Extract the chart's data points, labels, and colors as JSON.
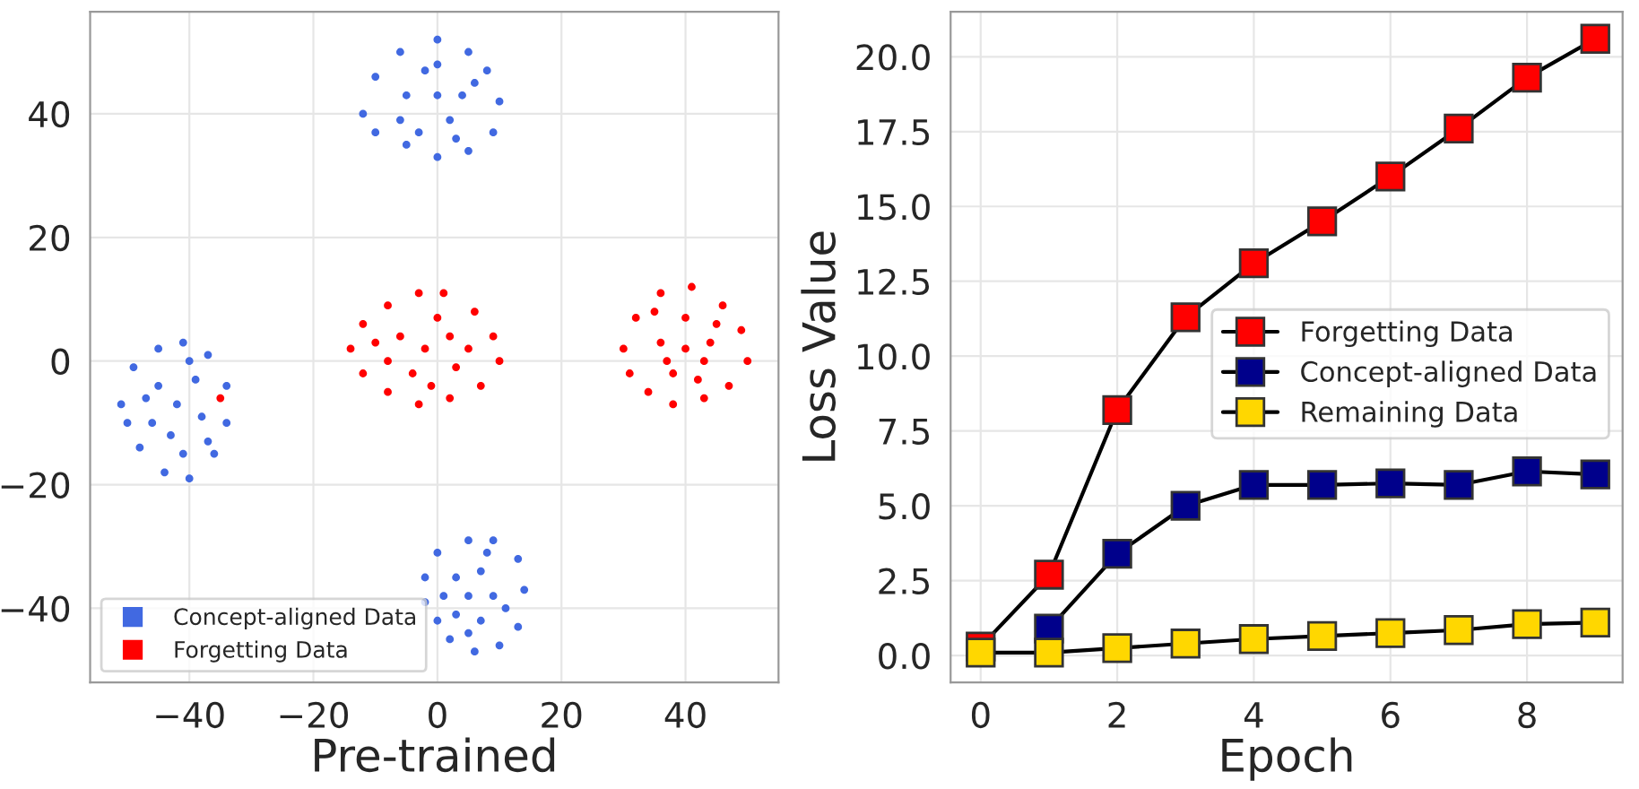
{
  "chart_data": [
    {
      "type": "scatter",
      "xlabel": "Pre-trained",
      "xlim": [
        -56,
        55
      ],
      "ylim": [
        -52,
        56.5
      ],
      "xticks": [
        {
          "value": -40,
          "label": "−40"
        },
        {
          "value": -20,
          "label": "−20"
        },
        0,
        20,
        40
      ],
      "yticks": [
        {
          "value": -40,
          "label": "−40"
        },
        {
          "value": -20,
          "label": "−20"
        },
        0,
        20,
        40
      ],
      "grid": true,
      "legend": "bottom left",
      "marker": "circle",
      "series": [
        {
          "name": "Concept-aligned Data",
          "color": "#4169e1",
          "x": [
            -12,
            -10,
            -6,
            0,
            5,
            8,
            10,
            9,
            5,
            0,
            -5,
            -10,
            -5,
            0,
            4,
            -2,
            2,
            -6,
            6,
            0,
            -3,
            3,
            -51,
            -49,
            -45,
            -41,
            -37,
            -34,
            -34,
            -36,
            -40,
            -44,
            -48,
            -50,
            -42,
            -45,
            -39,
            -43,
            -38,
            -46,
            -41,
            -40,
            -47,
            -37,
            -2,
            0,
            5,
            9,
            13,
            14,
            13,
            10,
            6,
            2,
            0,
            -2,
            3,
            7,
            5,
            9,
            3,
            7,
            11,
            1,
            8,
            5
          ],
          "values": [
            40,
            46,
            50,
            52,
            50,
            47,
            42,
            37,
            34,
            33,
            35,
            37,
            43,
            43,
            43,
            47,
            39,
            39,
            45,
            48,
            37,
            36,
            -7,
            -1,
            2,
            3,
            1,
            -4,
            -10,
            -15,
            -19,
            -18,
            -14,
            -10,
            -7,
            -4,
            -3,
            -12,
            -9,
            -10,
            -15,
            0,
            -6,
            -13,
            -35,
            -31,
            -29,
            -29,
            -32,
            -37,
            -43,
            -46,
            -47,
            -45,
            -42,
            -39,
            -35,
            -34,
            -38,
            -38,
            -41,
            -42,
            -40,
            -38,
            -31,
            -44
          ]
        },
        {
          "name": "Forgetting Data",
          "color": "#ff0000",
          "x": [
            -14,
            -12,
            -8,
            -3,
            1,
            6,
            9,
            10,
            7,
            2,
            -3,
            -8,
            -12,
            -2,
            -6,
            2,
            -4,
            3,
            -8,
            0,
            5,
            -1,
            -10,
            30,
            32,
            36,
            41,
            46,
            49,
            50,
            47,
            43,
            38,
            34,
            31,
            40,
            36,
            44,
            38,
            42,
            40,
            35,
            45,
            37,
            43,
            -35
          ],
          "values": [
            2,
            6,
            9,
            11,
            11,
            8,
            4,
            0,
            -4,
            -6,
            -7,
            -5,
            -2,
            2,
            4,
            4,
            -2,
            -1,
            0,
            7,
            2,
            -4,
            3,
            2,
            7,
            11,
            12,
            9,
            5,
            0,
            -4,
            -6,
            -7,
            -5,
            -2,
            2,
            3,
            3,
            -2,
            -3,
            7,
            8,
            6,
            0,
            0,
            -6
          ]
        }
      ]
    },
    {
      "type": "line",
      "xlabel": "Epoch",
      "ylabel": "Loss Value",
      "xlim": [
        -0.44,
        9.4
      ],
      "ylim": [
        -0.9,
        21.5
      ],
      "xticks": [
        0,
        2,
        4,
        6,
        8
      ],
      "yticks": [
        {
          "value": 0,
          "label": "0.0"
        },
        {
          "value": 2.5,
          "label": "2.5"
        },
        {
          "value": 5,
          "label": "5.0"
        },
        {
          "value": 7.5,
          "label": "7.5"
        },
        {
          "value": 10,
          "label": "10.0"
        },
        {
          "value": 12.5,
          "label": "12.5"
        },
        {
          "value": 15,
          "label": "15.0"
        },
        {
          "value": 17.5,
          "label": "17.5"
        },
        {
          "value": 20,
          "label": "20.0"
        }
      ],
      "grid": true,
      "legend": "right",
      "marker": "square",
      "line_style": "solid",
      "x": [
        0,
        1,
        2,
        3,
        4,
        5,
        6,
        7,
        8,
        9
      ],
      "series": [
        {
          "name": "Forgetting Data",
          "color": "#ff0000",
          "values": [
            0.3,
            2.7,
            8.2,
            11.3,
            13.1,
            14.5,
            16.0,
            17.6,
            19.3,
            20.6
          ]
        },
        {
          "name": "Concept-aligned Data",
          "color": "#00008b",
          "values": [
            null,
            0.9,
            3.4,
            5.0,
            5.7,
            5.7,
            5.75,
            5.7,
            6.15,
            6.05
          ]
        },
        {
          "name": "Remaining Data",
          "color": "#ffd700",
          "values": [
            0.1,
            0.1,
            0.25,
            0.4,
            0.55,
            0.65,
            0.75,
            0.85,
            1.05,
            1.1
          ]
        }
      ]
    }
  ]
}
